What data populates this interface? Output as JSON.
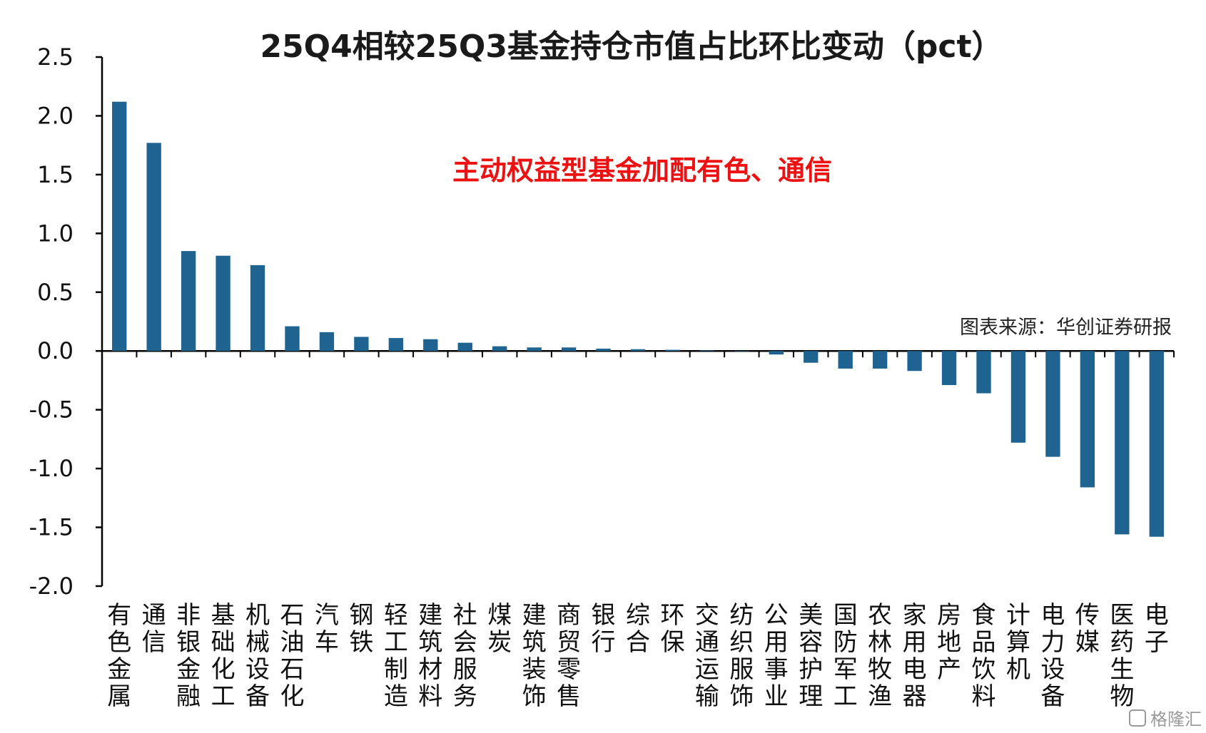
{
  "chart_data": {
    "type": "bar",
    "title": "25Q4相较25Q3基金持仓市值占比环比变动（pct）",
    "annotation": "主动权益型基金加配有色、通信",
    "source": "图表来源：华创证券研报",
    "ylim": [
      -2.0,
      2.5
    ],
    "yticks": [
      "2.5",
      "2.0",
      "1.5",
      "1.0",
      "0.5",
      "0.0",
      "-0.5",
      "-1.0",
      "-1.5",
      "-2.0"
    ],
    "bar_color": "#1f6491",
    "grid": false,
    "categories": [
      "有色金属",
      "通信",
      "非银金融",
      "基础化工",
      "机械设备",
      "石油石化",
      "汽车",
      "钢铁",
      "轻工制造",
      "建筑材料",
      "社会服务",
      "煤炭",
      "建筑装饰",
      "商贸零售",
      "银行",
      "综合",
      "环保",
      "交通运输",
      "纺织服饰",
      "公用事业",
      "美容护理",
      "国防军工",
      "农林牧渔",
      "家用电器",
      "房地产",
      "食品饮料",
      "计算机",
      "电力设备",
      "传媒",
      "医药生物",
      "电子"
    ],
    "values": [
      2.12,
      1.77,
      0.85,
      0.81,
      0.73,
      0.21,
      0.16,
      0.12,
      0.11,
      0.1,
      0.07,
      0.04,
      0.03,
      0.03,
      0.02,
      0.015,
      0.01,
      0.005,
      0.0,
      -0.03,
      -0.1,
      -0.15,
      -0.15,
      -0.17,
      -0.29,
      -0.36,
      -0.78,
      -0.9,
      -1.16,
      -1.56,
      -1.58
    ]
  },
  "watermark": "格隆汇"
}
